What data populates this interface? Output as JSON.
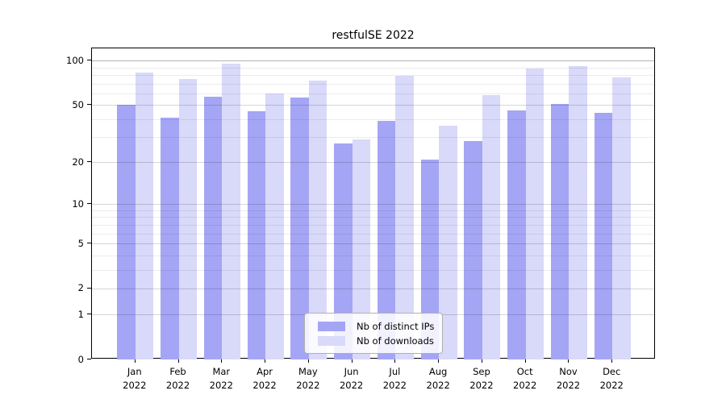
{
  "title": "restfulSE 2022",
  "legend": {
    "items": [
      {
        "label": "Nb of distinct IPs",
        "series": "distinct_ips"
      },
      {
        "label": "Nb of downloads",
        "series": "downloads"
      }
    ]
  },
  "colors": {
    "distinct_ips": "#a5a5f5",
    "downloads": "#d9d9fa"
  },
  "y_axis": {
    "major_ticks": [
      {
        "label": "100",
        "value": 100
      },
      {
        "label": "50",
        "value": 50
      },
      {
        "label": "20",
        "value": 20
      },
      {
        "label": "10",
        "value": 10
      },
      {
        "label": "5",
        "value": 5
      },
      {
        "label": "2",
        "value": 2
      },
      {
        "label": "1",
        "value": 1
      },
      {
        "label": "0",
        "value": 0
      }
    ],
    "minor_tick_values": [
      3,
      4,
      6,
      7,
      8,
      9,
      30,
      40,
      60,
      70,
      80,
      90
    ],
    "scale": "log10(1+x)"
  },
  "chart_data": {
    "type": "bar",
    "title": "restfulSE 2022",
    "categories": [
      "Jan",
      "Feb",
      "Mar",
      "Apr",
      "May",
      "Jun",
      "Jul",
      "Aug",
      "Sep",
      "Oct",
      "Nov",
      "Dec"
    ],
    "category_year": "2022",
    "series": [
      {
        "name": "Nb of distinct IPs",
        "key": "distinct_ips",
        "values": [
          50,
          41,
          57,
          45,
          56,
          27,
          39,
          21,
          28,
          46,
          51,
          44
        ]
      },
      {
        "name": "Nb of downloads",
        "key": "downloads",
        "values": [
          83,
          75,
          95,
          60,
          73,
          29,
          79,
          36,
          58,
          88,
          92,
          77
        ]
      }
    ],
    "xlabel": "",
    "ylabel": "",
    "ylim": [
      0,
      121
    ],
    "grid": true,
    "legend_position": "lower center"
  }
}
